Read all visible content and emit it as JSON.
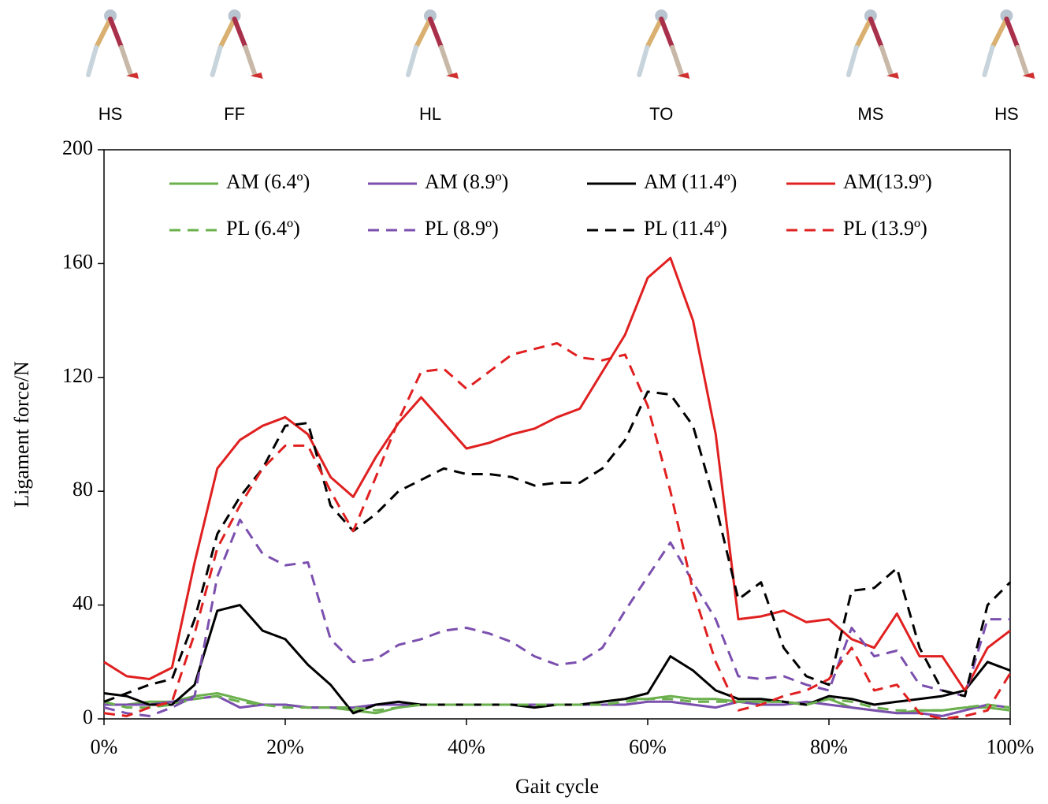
{
  "chart_data": {
    "type": "line",
    "phases": [
      {
        "label": "HS",
        "x": 0.7
      },
      {
        "label": "FF",
        "x": 14.4
      },
      {
        "label": "HL",
        "x": 36
      },
      {
        "label": "TO",
        "x": 61.5
      },
      {
        "label": "MS",
        "x": 84.6
      },
      {
        "label": "HS",
        "x": 99.6
      }
    ],
    "x_label": "Gait cycle",
    "y_label": "Ligament force/N",
    "x": [
      0,
      2.5,
      5,
      7.5,
      10,
      12.5,
      15,
      17.5,
      20,
      22.5,
      25,
      27.5,
      30,
      32.5,
      35,
      37.5,
      40,
      42.5,
      45,
      47.5,
      50,
      52.5,
      55,
      57.5,
      60,
      62.5,
      65,
      67.5,
      70,
      72.5,
      75,
      77.5,
      80,
      82.5,
      85,
      87.5,
      90,
      92.5,
      95,
      97.5,
      100
    ],
    "xlim": [
      0,
      100
    ],
    "xticks": [
      {
        "value": 0,
        "label": "0%"
      },
      {
        "value": 20,
        "label": "20%"
      },
      {
        "value": 40,
        "label": "40%"
      },
      {
        "value": 60,
        "label": "60%"
      },
      {
        "value": 80,
        "label": "80%"
      },
      {
        "value": 100,
        "label": "100%"
      }
    ],
    "ylim": [
      0,
      200
    ],
    "yticks": [
      0,
      40,
      80,
      120,
      160,
      200
    ],
    "grid": false,
    "legend": "top",
    "series": [
      {
        "name": "AM (6.4º)",
        "color": "#6ab04c",
        "dashed": false,
        "values": [
          5,
          5,
          6,
          6,
          8,
          9,
          7,
          5,
          5,
          4,
          4,
          3,
          2,
          4,
          5,
          5,
          5,
          5,
          5,
          5,
          5,
          5,
          6,
          7,
          7,
          8,
          7,
          7,
          6,
          6,
          6,
          5,
          7,
          4,
          3,
          2,
          3,
          3,
          4,
          4,
          3
        ]
      },
      {
        "name": "AM (8.9º)",
        "color": "#7b4fae",
        "dashed": false,
        "values": [
          5,
          5,
          5,
          6,
          7,
          8,
          4,
          5,
          5,
          4,
          4,
          4,
          5,
          5,
          5,
          5,
          5,
          5,
          5,
          5,
          5,
          5,
          5,
          5,
          6,
          6,
          5,
          4,
          6,
          5,
          5,
          6,
          5,
          4,
          3,
          2,
          2,
          1,
          3,
          5,
          4
        ]
      },
      {
        "name": "AM (11.4º)",
        "color": "#000000",
        "dashed": false,
        "values": [
          9,
          8,
          5,
          5,
          12,
          38,
          40,
          31,
          28,
          19,
          12,
          2,
          5,
          6,
          5,
          5,
          5,
          5,
          5,
          4,
          5,
          5,
          6,
          7,
          9,
          22,
          17,
          10,
          7,
          7,
          6,
          5,
          8,
          7,
          5,
          6,
          7,
          8,
          10,
          20,
          17
        ]
      },
      {
        "name": "AM(13.9º)",
        "color": "#e02020",
        "dashed": false,
        "values": [
          20,
          15,
          14,
          18,
          55,
          88,
          98,
          103,
          106,
          100,
          85,
          78,
          92,
          104,
          113,
          104,
          95,
          97,
          100,
          102,
          106,
          109,
          122,
          135,
          155,
          162,
          140,
          100,
          35,
          36,
          38,
          34,
          35,
          28,
          25,
          37,
          22,
          22,
          10,
          25,
          31
        ]
      },
      {
        "name": "PL (6.4º)",
        "color": "#6ab04c",
        "dashed": true,
        "values": [
          6,
          4,
          4,
          5,
          7,
          8,
          6,
          5,
          4,
          4,
          4,
          4,
          3,
          4,
          5,
          5,
          5,
          5,
          5,
          5,
          5,
          5,
          5,
          6,
          7,
          7,
          6,
          6,
          6,
          6,
          6,
          5,
          7,
          6,
          4,
          3,
          3,
          3,
          4,
          5,
          4
        ]
      },
      {
        "name": "PL (8.9º)",
        "color": "#7b4fae",
        "dashed": true,
        "values": [
          4,
          2,
          1,
          4,
          8,
          50,
          70,
          58,
          54,
          55,
          28,
          20,
          21,
          26,
          28,
          31,
          32,
          30,
          27,
          22,
          19,
          20,
          25,
          38,
          50,
          62,
          48,
          35,
          15,
          14,
          15,
          12,
          10,
          32,
          22,
          24,
          12,
          10,
          8,
          35,
          35
        ]
      },
      {
        "name": "PL (11.4º)",
        "color": "#000000",
        "dashed": true,
        "values": [
          6,
          9,
          12,
          14,
          35,
          65,
          78,
          88,
          103,
          104,
          75,
          66,
          72,
          80,
          84,
          88,
          86,
          86,
          85,
          82,
          83,
          83,
          88,
          98,
          115,
          114,
          103,
          75,
          42,
          48,
          25,
          15,
          12,
          45,
          46,
          53,
          25,
          10,
          8,
          40,
          48
        ]
      },
      {
        "name": "PL (13.9º)",
        "color": "#e02020",
        "dashed": true,
        "values": [
          2,
          1,
          4,
          6,
          30,
          60,
          75,
          88,
          96,
          96,
          80,
          66,
          85,
          105,
          122,
          123,
          116,
          122,
          128,
          130,
          132,
          127,
          126,
          128,
          110,
          80,
          45,
          20,
          3,
          5,
          8,
          10,
          14,
          25,
          10,
          12,
          2,
          0,
          1,
          3,
          16
        ]
      }
    ]
  }
}
